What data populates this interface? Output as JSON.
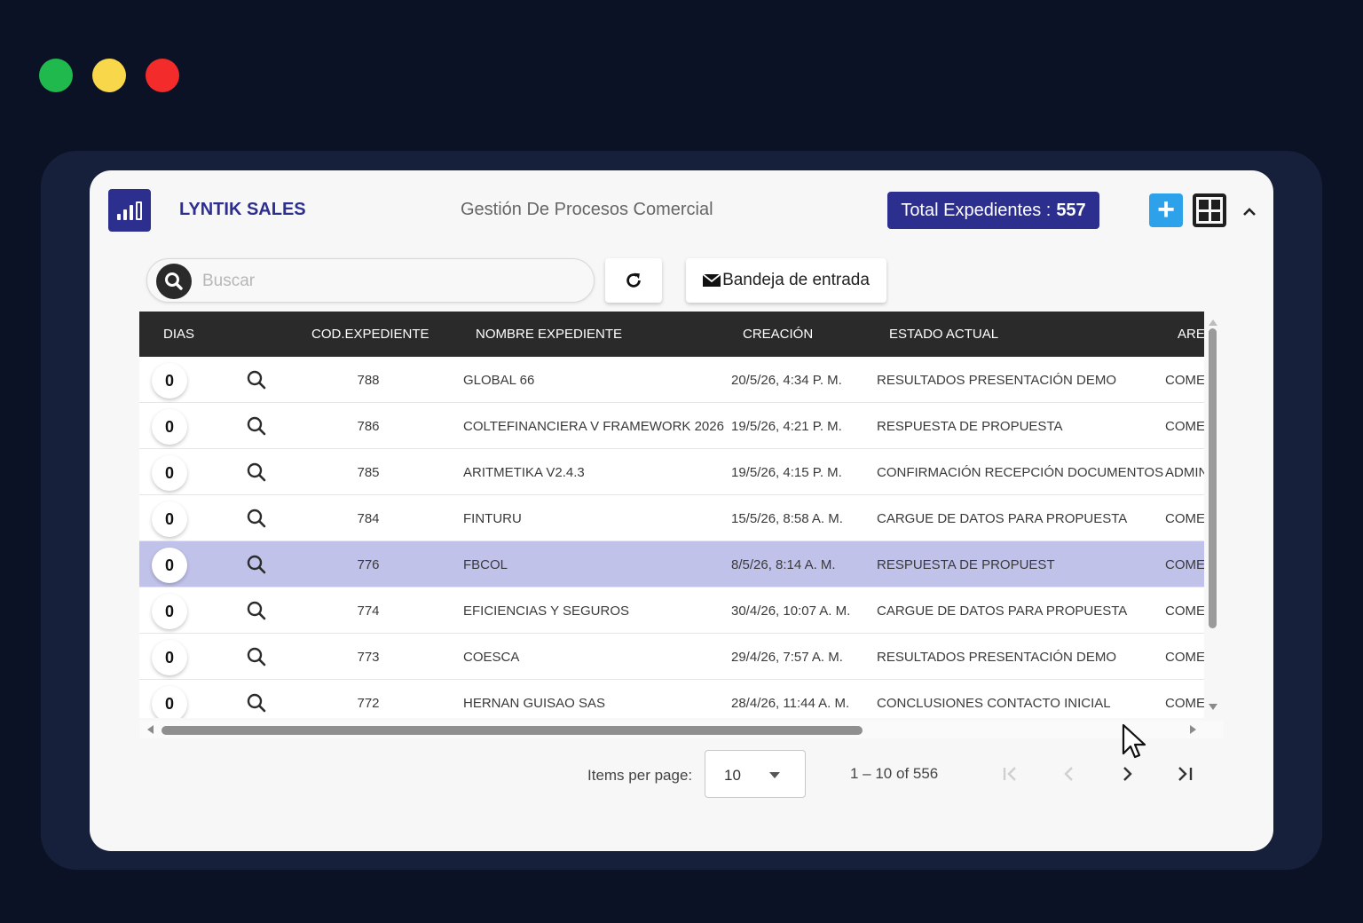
{
  "window_controls": {
    "colors": {
      "green": "#1fb94e",
      "yellow": "#f8d84a",
      "red": "#f32b2b"
    }
  },
  "header": {
    "app_name": "LYNTIK SALES",
    "subtitle": "Gestión De Procesos Comercial",
    "total_label": "Total Expedientes :",
    "total_value": "557",
    "logo_icon": "bar-chart-icon",
    "add_icon": "plus-icon",
    "layout_icon": "dashboard-layout-icon",
    "collapse_icon": "chevron-up-icon"
  },
  "toolbar": {
    "search_placeholder": "Buscar",
    "search_value": "",
    "refresh_icon": "refresh-icon",
    "inbox_label": "Bandeja de entrada",
    "inbox_icon": "envelope-icon"
  },
  "table": {
    "columns": {
      "dias": "DIAS",
      "cod": "COD.EXPEDIENTE",
      "nombre": "NOMBRE EXPEDIENTE",
      "creacion": "CREACIÓN",
      "estado": "ESTADO ACTUAL",
      "area": "ARE"
    },
    "rows": [
      {
        "dias": "0",
        "cod": "788",
        "nombre": "GLOBAL 66",
        "creacion": "20/5/26, 4:34 P. M.",
        "estado": "RESULTADOS PRESENTACIÓN DEMO",
        "area": "COMEI",
        "selected": false
      },
      {
        "dias": "0",
        "cod": "786",
        "nombre": "COLTEFINANCIERA V FRAMEWORK 2026",
        "creacion": "19/5/26, 4:21 P. M.",
        "estado": "RESPUESTA DE PROPUESTA",
        "area": "COMEI",
        "selected": false
      },
      {
        "dias": "0",
        "cod": "785",
        "nombre": "ARITMETIKA V2.4.3",
        "creacion": "19/5/26, 4:15 P. M.",
        "estado": "CONFIRMACIÓN RECEPCIÓN DOCUMENTOS",
        "area": "ADMIN",
        "selected": false
      },
      {
        "dias": "0",
        "cod": "784",
        "nombre": "FINTURU",
        "creacion": "15/5/26, 8:58 A. M.",
        "estado": "CARGUE DE DATOS PARA PROPUESTA",
        "area": "COMEI",
        "selected": false
      },
      {
        "dias": "0",
        "cod": "776",
        "nombre": "FBCOL",
        "creacion": "8/5/26, 8:14 A. M.",
        "estado": "RESPUESTA DE PROPUEST",
        "area": "COMEI",
        "selected": true
      },
      {
        "dias": "0",
        "cod": "774",
        "nombre": "EFICIENCIAS Y SEGUROS",
        "creacion": "30/4/26, 10:07 A. M.",
        "estado": "CARGUE DE DATOS PARA PROPUESTA",
        "area": "COMEI",
        "selected": false
      },
      {
        "dias": "0",
        "cod": "773",
        "nombre": "COESCA",
        "creacion": "29/4/26, 7:57 A. M.",
        "estado": "RESULTADOS PRESENTACIÓN DEMO",
        "area": "COMEI",
        "selected": false
      },
      {
        "dias": "0",
        "cod": "772",
        "nombre": "HERNAN GUISAO SAS",
        "creacion": "28/4/26, 11:44 A. M.",
        "estado": "CONCLUSIONES CONTACTO INICIAL",
        "area": "COMEI",
        "selected": false
      }
    ]
  },
  "paginator": {
    "items_label": "Items per page:",
    "page_size": "10",
    "range": "1 – 10 of 556"
  },
  "colors": {
    "brand": "#2d2f8f",
    "accent": "#2da2ea",
    "selected_row": "#c1c2ea",
    "header_bg": "#2a2a2a"
  }
}
